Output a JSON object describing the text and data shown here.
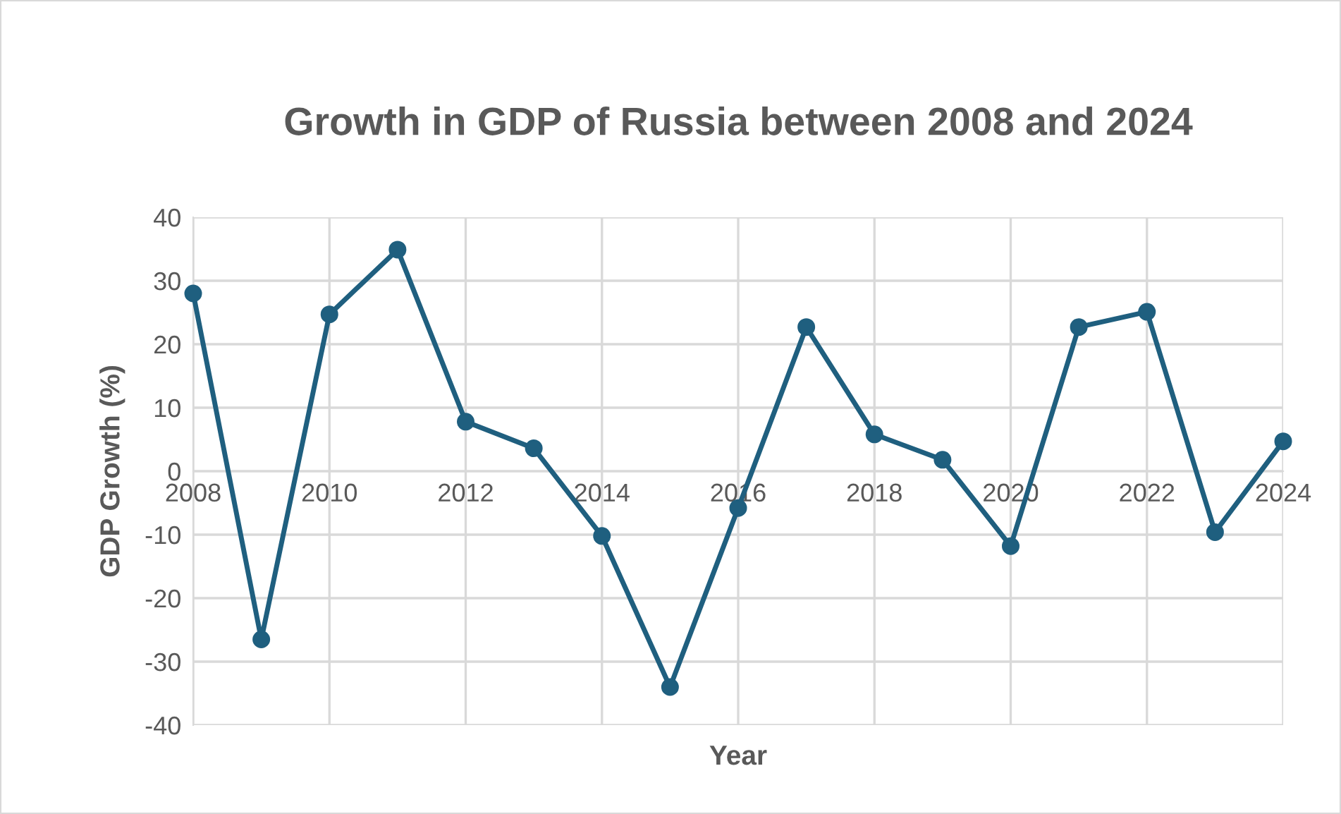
{
  "chart_data": {
    "type": "line",
    "title": "Growth in GDP of Russia between 2008 and 2024",
    "xlabel": "Year",
    "ylabel": "GDP Growth (%)",
    "x": [
      2008,
      2009,
      2010,
      2011,
      2012,
      2013,
      2014,
      2015,
      2016,
      2017,
      2018,
      2019,
      2020,
      2021,
      2022,
      2023,
      2024
    ],
    "series": [
      {
        "color": "#1f5f7f",
        "values": [
          28,
          -26.5,
          24.7,
          34.9,
          7.8,
          3.6,
          -10.2,
          -34,
          -5.8,
          22.7,
          5.8,
          1.8,
          -11.8,
          22.7,
          25.1,
          -9.6,
          4.7
        ]
      }
    ],
    "xlim": [
      2008,
      2024
    ],
    "xticks": [
      2008,
      2010,
      2012,
      2014,
      2016,
      2018,
      2020,
      2022,
      2024
    ],
    "ylim": [
      -40,
      40
    ],
    "yticks": [
      -40,
      -30,
      -20,
      -10,
      0,
      10,
      20,
      30,
      40
    ],
    "grid": true,
    "legend": false,
    "marker": "circle",
    "line_style": "solid"
  }
}
